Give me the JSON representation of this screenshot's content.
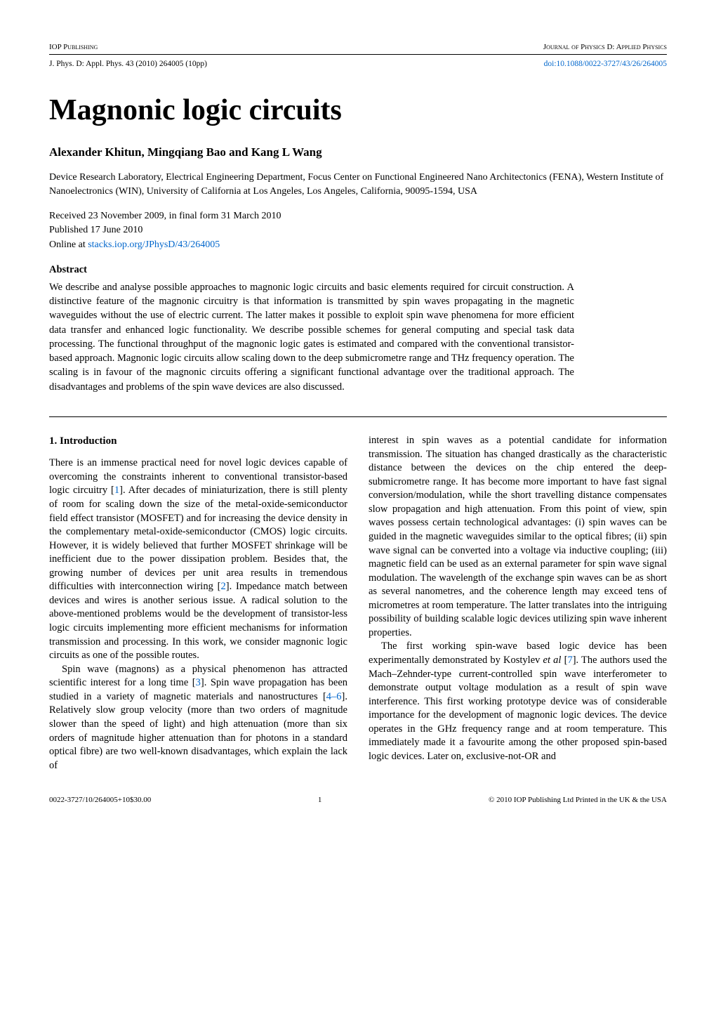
{
  "header": {
    "publisher_left": "IOP Publishing",
    "journal_right": "Journal of Physics D: Applied Physics",
    "citation": "J. Phys. D: Appl. Phys. 43 (2010) 264005 (10pp)",
    "doi": "doi:10.1088/0022-3727/43/26/264005"
  },
  "title": "Magnonic logic circuits",
  "authors": "Alexander Khitun, Mingqiang Bao and Kang L Wang",
  "affiliation": "Device Research Laboratory, Electrical Engineering Department, Focus Center on Functional Engineered Nano Architectonics (FENA), Western Institute of Nanoelectronics (WIN), University of California at Los Angeles, Los Angeles, California, 90095-1594, USA",
  "received": "Received 23 November 2009, in final form 31 March 2010",
  "published": "Published 17 June 2010",
  "online_prefix": "Online at ",
  "online_link": "stacks.iop.org/JPhysD/43/264005",
  "abstract_heading": "Abstract",
  "abstract": "We describe and analyse possible approaches to magnonic logic circuits and basic elements required for circuit construction. A distinctive feature of the magnonic circuitry is that information is transmitted by spin waves propagating in the magnetic waveguides without the use of electric current. The latter makes it possible to exploit spin wave phenomena for more efficient data transfer and enhanced logic functionality. We describe possible schemes for general computing and special task data processing. The functional throughput of the magnonic logic gates is estimated and compared with the conventional transistor-based approach. Magnonic logic circuits allow scaling down to the deep submicrometre range and THz frequency operation. The scaling is in favour of the magnonic circuits offering a significant functional advantage over the traditional approach. The disadvantages and problems of the spin wave devices are also discussed.",
  "section1_heading": "1. Introduction",
  "col_left_p1a": "There is an immense practical need for novel logic devices capable of overcoming the constraints inherent to conventional transistor-based logic circuitry [",
  "ref1": "1",
  "col_left_p1b": "].   After decades of miniaturization, there is still plenty of room for scaling down the size of the metal-oxide-semiconductor field effect transistor (MOSFET) and for increasing the device density in the complementary metal-oxide-semiconductor (CMOS) logic circuits. However, it is widely believed that further MOSFET shrinkage will be inefficient due to the power dissipation problem. Besides that, the growing number of devices per unit area results in tremendous difficulties with interconnection wiring [",
  "ref2": "2",
  "col_left_p1c": "].  Impedance match between devices and wires is another serious issue.  A radical solution to the above-mentioned problems would be the development of transistor-less logic circuits implementing more efficient mechanisms for information transmission and processing.  In this work, we consider magnonic logic circuits as one of the possible routes.",
  "col_left_p2a": "Spin wave (magnons) as a physical phenomenon has attracted scientific interest for a long time [",
  "ref3": "3",
  "col_left_p2b": "].  Spin wave propagation has been studied in a variety of magnetic materials and nanostructures [",
  "ref4_6": "4–6",
  "col_left_p2c": "].  Relatively slow group velocity (more than two orders of magnitude slower than the speed of light) and high attenuation (more than six orders of magnitude higher attenuation than for photons in a standard optical fibre) are two well-known disadvantages, which explain the lack of",
  "col_right_p1": "interest in spin waves as a potential candidate for information transmission.  The situation has changed drastically as the characteristic distance between the devices on the chip entered the deep-submicrometre range. It has become more important to have fast signal conversion/modulation, while the short travelling distance compensates slow propagation and high attenuation.  From this point of view, spin waves possess certain technological advantages: (i) spin waves can be guided in the magnetic waveguides similar to the optical fibres; (ii) spin wave signal can be converted into a voltage via inductive coupling; (iii) magnetic field can be used as an external parameter for spin wave signal modulation. The wavelength of the exchange spin waves can be as short as several nanometres, and the coherence length may exceed tens of micrometres at room temperature.  The latter translates into the intriguing possibility of building scalable logic devices utilizing spin wave inherent properties.",
  "col_right_p2a": "The first working spin-wave based logic device has been experimentally demonstrated by Kostylev ",
  "etal": "et al",
  "col_right_p2b": " [",
  "ref7": "7",
  "col_right_p2c": "].  The authors used the Mach–Zehnder-type current-controlled spin wave interferometer to demonstrate output voltage modulation as a result of spin wave interference.  This first working prototype device was of considerable importance for the development of magnonic logic devices. The device operates in the GHz frequency range and at room temperature. This immediately made it a favourite among the other proposed spin-based logic devices.  Later on, exclusive-not-OR and",
  "footer": {
    "left": "0022-3727/10/264005+10$30.00",
    "page": "1",
    "right": "© 2010 IOP Publishing Ltd   Printed in the UK & the USA"
  },
  "colors": {
    "text": "#000000",
    "background": "#ffffff",
    "link": "#0066cc"
  },
  "typography": {
    "body_font": "Times New Roman",
    "body_size_pt": 10.5,
    "title_size_pt": 30,
    "authors_size_pt": 12,
    "header_size_pt": 8
  }
}
